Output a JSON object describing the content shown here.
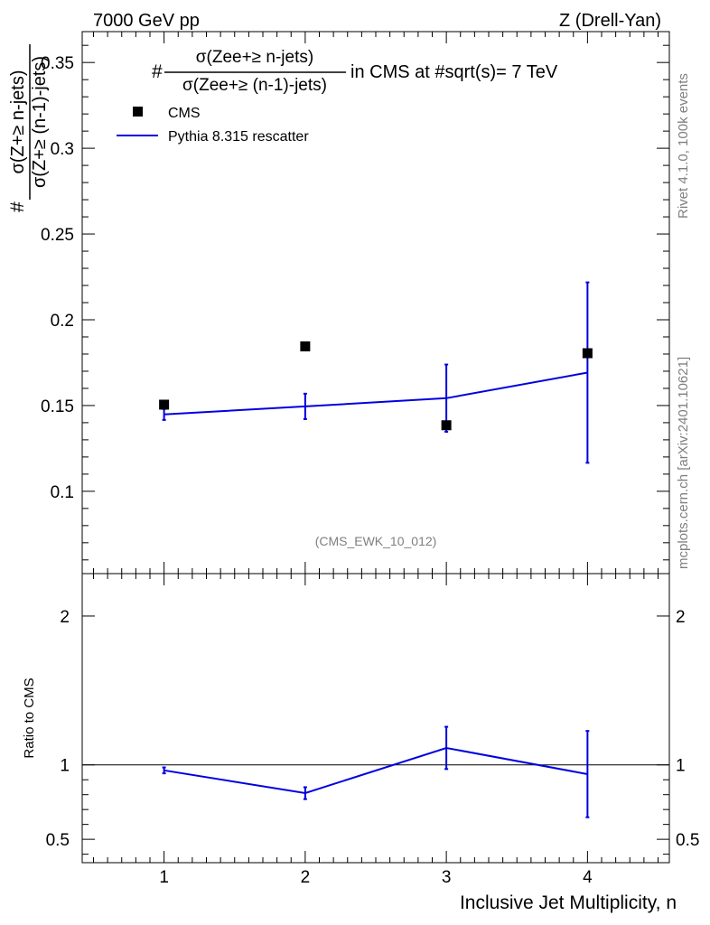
{
  "header": {
    "left": "7000 GeV pp",
    "right": "Z (Drell-Yan)"
  },
  "side_labels": {
    "rivet": "Rivet 4.1.0,  100k events",
    "mcplots": "mcplots.cern.ch [arXiv:2401.10621]"
  },
  "plot_title": {
    "hash": "#",
    "numerator": "σ(Zee+≥ n-jets)",
    "denominator": "σ(Zee+≥ (n-1)-jets)",
    "suffix": "in CMS at #sqrt(s)= 7 TeV"
  },
  "ylabel_main": {
    "hash": "#",
    "numerator": "σ(Z+≥ n-jets)",
    "denominator": "σ(Z+≥ (n-1)-jets)"
  },
  "analysis_id": "(CMS_EWK_10_012)",
  "legend": {
    "data_label": "CMS",
    "mc_label": "Pythia 8.315 rescatter"
  },
  "colors": {
    "data": "#000000",
    "mc": "#0000e0",
    "grey_text": "#7f7f7f"
  },
  "chart_data": [
    {
      "type": "scatter",
      "panel": "main",
      "x_categories": [
        1,
        2,
        3,
        4
      ],
      "xlim": [
        0.42,
        4.58
      ],
      "ylim": [
        0.052,
        0.368
      ],
      "yticks": [
        0.1,
        0.15,
        0.2,
        0.25,
        0.3,
        0.35
      ],
      "ytick_labels": [
        "0.1",
        "0.15",
        "0.2",
        "0.25",
        "0.3",
        "0.35"
      ],
      "series": [
        {
          "name": "CMS",
          "kind": "markers",
          "x": [
            1,
            2,
            3,
            4
          ],
          "y": [
            0.1505,
            0.1845,
            0.1385,
            0.1805
          ],
          "err": [
            0.003,
            0.003,
            0.003,
            0.003
          ]
        },
        {
          "name": "Pythia 8.315 rescatter",
          "kind": "line",
          "x": [
            1,
            2,
            3,
            4
          ],
          "y": [
            0.1448,
            0.1495,
            0.1543,
            0.1692
          ],
          "err": [
            0.0032,
            0.0074,
            0.0196,
            0.0526
          ]
        }
      ]
    },
    {
      "type": "line",
      "panel": "ratio",
      "ylabel": "Ratio to CMS",
      "xlabel": "Inclusive Jet Multiplicity, n",
      "x_categories": [
        1,
        2,
        3,
        4
      ],
      "xtick_labels": [
        "1",
        "2",
        "3",
        "4"
      ],
      "xlim": [
        0.42,
        4.58
      ],
      "ylim": [
        0.343,
        2.285
      ],
      "yticks": [
        0.5,
        1,
        2
      ],
      "ytick_labels": [
        "0.5",
        "1",
        "2"
      ],
      "reference_line": 1,
      "series": [
        {
          "name": "Pythia 8.315 rescatter / CMS",
          "x": [
            1,
            2,
            3,
            4
          ],
          "y": [
            0.963,
            0.81,
            1.114,
            0.938
          ],
          "err": [
            0.02,
            0.04,
            0.142,
            0.29
          ]
        }
      ]
    }
  ]
}
